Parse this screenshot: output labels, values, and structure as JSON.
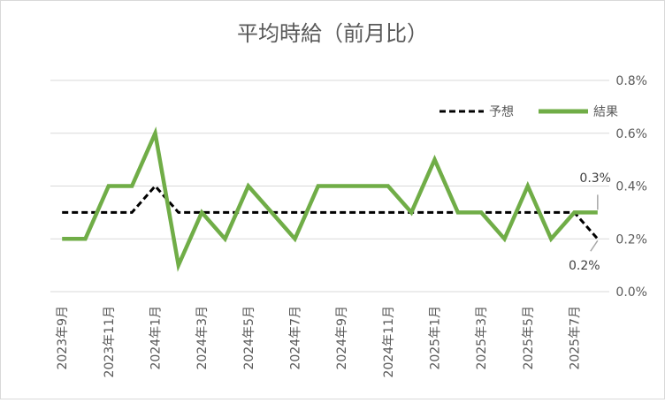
{
  "chart_data": {
    "type": "line",
    "title": "平均時給（前月比）",
    "xlabel": "",
    "ylabel": "",
    "y_axis_position": "right",
    "ylim": [
      0,
      0.8
    ],
    "y_ticks": [
      "0.0%",
      "0.2%",
      "0.4%",
      "0.6%",
      "0.8%"
    ],
    "y_tick_values": [
      0,
      0.2,
      0.4,
      0.6,
      0.8
    ],
    "grid": true,
    "legend": "top-right",
    "x": [
      "2023-09",
      "2023-10",
      "2023-11",
      "2023-12",
      "2024-01",
      "2024-02",
      "2024-03",
      "2024-04",
      "2024-05",
      "2024-06",
      "2024-07",
      "2024-08",
      "2024-09",
      "2024-10",
      "2024-11",
      "2024-12",
      "2025-01",
      "2025-02",
      "2025-03",
      "2025-04",
      "2025-05",
      "2025-06",
      "2025-07",
      "2025-08"
    ],
    "x_tick_labels": [
      "2023年9月",
      "",
      "2023年11月",
      "",
      "2024年1月",
      "",
      "2024年3月",
      "",
      "2024年5月",
      "",
      "2024年7月",
      "",
      "2024年9月",
      "",
      "2024年11月",
      "",
      "2025年1月",
      "",
      "2025年3月",
      "",
      "2025年5月",
      "",
      "2025年7月",
      ""
    ],
    "series": [
      {
        "name": "予想",
        "style": "dashed",
        "color": "#000000",
        "values": [
          0.3,
          0.3,
          0.3,
          0.3,
          0.4,
          0.3,
          0.3,
          0.3,
          0.3,
          0.3,
          0.3,
          0.3,
          0.3,
          0.3,
          0.3,
          0.3,
          0.3,
          0.3,
          0.3,
          0.3,
          0.3,
          0.3,
          0.3,
          0.2
        ]
      },
      {
        "name": "結果",
        "style": "solid",
        "color": "#70ad47",
        "values": [
          0.2,
          0.2,
          0.4,
          0.4,
          0.6,
          0.1,
          0.3,
          0.2,
          0.4,
          0.3,
          0.2,
          0.4,
          0.4,
          0.4,
          0.4,
          0.3,
          0.5,
          0.3,
          0.3,
          0.2,
          0.4,
          0.2,
          0.3,
          0.3
        ]
      }
    ],
    "annotations": [
      {
        "text": "0.3%",
        "series": "結果",
        "x": "2025-08",
        "y": 0.3
      },
      {
        "text": "0.2%",
        "series": "予想",
        "x": "2025-08",
        "y": 0.2
      }
    ]
  }
}
